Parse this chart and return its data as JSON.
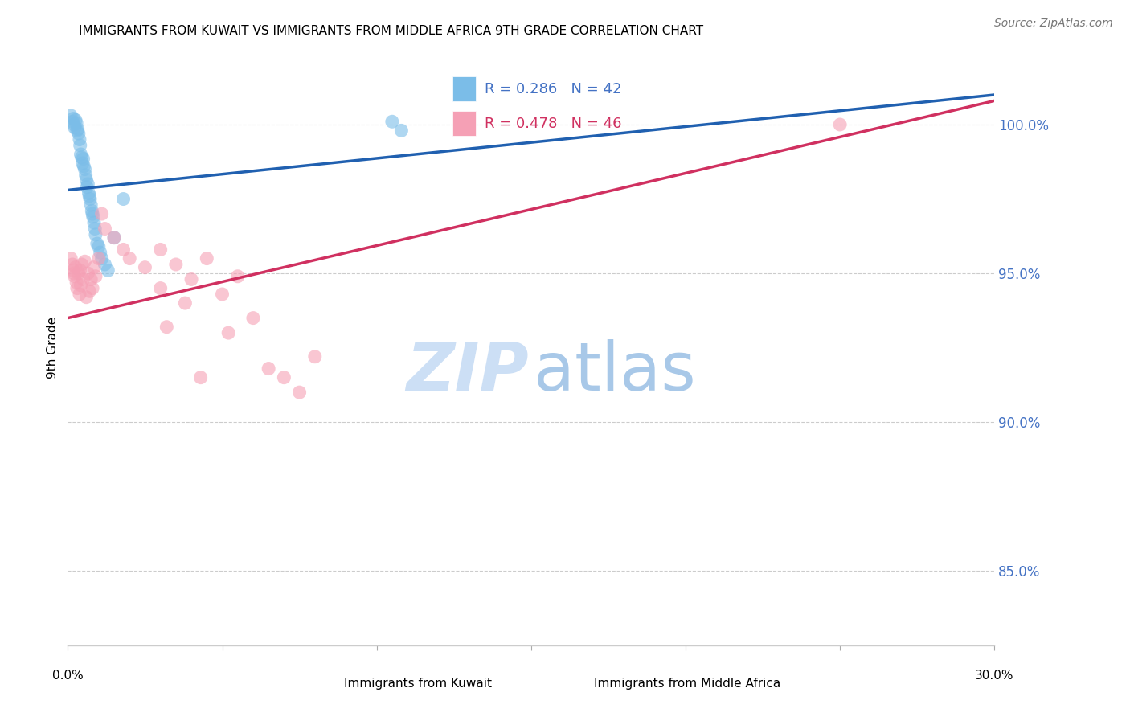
{
  "title": "IMMIGRANTS FROM KUWAIT VS IMMIGRANTS FROM MIDDLE AFRICA 9TH GRADE CORRELATION CHART",
  "source": "Source: ZipAtlas.com",
  "ylabel": "9th Grade",
  "y_ticks": [
    85.0,
    90.0,
    95.0,
    100.0
  ],
  "y_tick_labels": [
    "85.0%",
    "90.0%",
    "95.0%",
    "100.0%"
  ],
  "xlim": [
    0.0,
    30.0
  ],
  "ylim": [
    82.5,
    102.5
  ],
  "legend_blue_r": "R = 0.286",
  "legend_blue_n": "N = 42",
  "legend_pink_r": "R = 0.478",
  "legend_pink_n": "N = 46",
  "blue_color": "#7bbde8",
  "pink_color": "#f5a0b5",
  "blue_line_color": "#2060b0",
  "pink_line_color": "#d03060",
  "legend_text_blue": "#4472C4",
  "legend_text_pink": "#d03060",
  "watermark_zip_color": "#ccdff5",
  "watermark_atlas_color": "#a8c8e8",
  "blue_line_x0": 0.0,
  "blue_line_x1": 30.0,
  "blue_line_y0": 97.8,
  "blue_line_y1": 101.0,
  "pink_line_x0": 0.0,
  "pink_line_x1": 30.0,
  "pink_line_y0": 93.5,
  "pink_line_y1": 100.8,
  "blue_x": [
    0.1,
    0.15,
    0.18,
    0.2,
    0.22,
    0.25,
    0.28,
    0.3,
    0.32,
    0.35,
    0.38,
    0.4,
    0.42,
    0.45,
    0.48,
    0.5,
    0.52,
    0.55,
    0.58,
    0.6,
    0.62,
    0.65,
    0.68,
    0.7,
    0.72,
    0.75,
    0.78,
    0.8,
    0.82,
    0.85,
    0.88,
    0.9,
    0.95,
    1.0,
    1.05,
    1.1,
    1.2,
    1.3,
    1.5,
    1.8,
    10.5,
    10.8
  ],
  "blue_y": [
    100.3,
    100.1,
    100.2,
    100.0,
    99.9,
    100.15,
    100.05,
    99.8,
    99.85,
    99.7,
    99.5,
    99.3,
    99.0,
    98.9,
    98.7,
    98.85,
    98.6,
    98.5,
    98.3,
    98.15,
    97.9,
    98.0,
    97.7,
    97.6,
    97.5,
    97.3,
    97.1,
    97.0,
    96.9,
    96.7,
    96.5,
    96.3,
    96.0,
    95.9,
    95.7,
    95.5,
    95.3,
    95.1,
    96.2,
    97.5,
    100.1,
    99.8
  ],
  "pink_x": [
    0.1,
    0.15,
    0.18,
    0.2,
    0.22,
    0.25,
    0.28,
    0.3,
    0.35,
    0.38,
    0.4,
    0.42,
    0.45,
    0.5,
    0.55,
    0.6,
    0.65,
    0.7,
    0.75,
    0.8,
    0.85,
    0.9,
    1.0,
    1.1,
    1.2,
    1.5,
    1.8,
    2.0,
    2.5,
    3.0,
    3.0,
    3.5,
    4.0,
    4.5,
    5.0,
    5.5,
    6.0,
    6.5,
    7.0,
    7.5,
    8.0,
    3.2,
    3.8,
    4.3,
    5.2,
    25.0
  ],
  "pink_y": [
    95.5,
    95.3,
    95.1,
    95.0,
    94.9,
    95.2,
    94.7,
    94.5,
    95.0,
    94.3,
    95.1,
    94.6,
    95.3,
    94.8,
    95.4,
    94.2,
    95.0,
    94.4,
    94.8,
    94.5,
    95.2,
    94.9,
    95.5,
    97.0,
    96.5,
    96.2,
    95.8,
    95.5,
    95.2,
    95.8,
    94.5,
    95.3,
    94.8,
    95.5,
    94.3,
    94.9,
    93.5,
    91.8,
    91.5,
    91.0,
    92.2,
    93.2,
    94.0,
    91.5,
    93.0,
    100.0
  ]
}
